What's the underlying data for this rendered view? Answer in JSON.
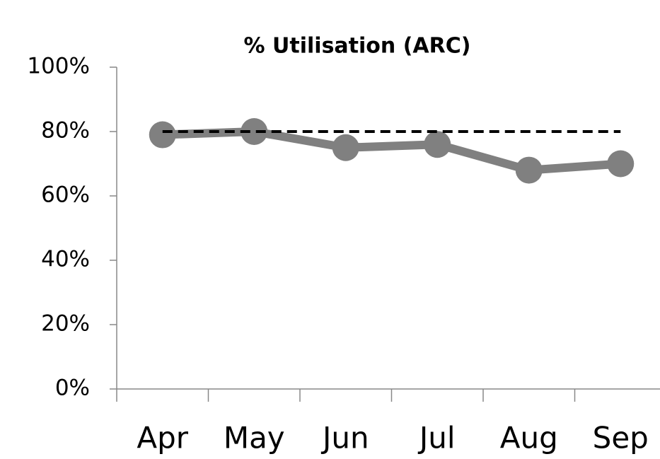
{
  "chart_data": {
    "type": "line",
    "title": "% Utilisation (ARC)",
    "categories": [
      "Apr",
      "May",
      "Jun",
      "Jul",
      "Aug",
      "Sep"
    ],
    "series": [
      {
        "color": "#808080",
        "values": [
          79,
          80,
          75,
          76,
          68,
          70
        ],
        "markers": true
      },
      {
        "color": "#000000",
        "values": [
          80,
          80,
          80,
          80,
          80,
          80
        ],
        "dashed": true
      }
    ],
    "ylim": [
      0,
      100
    ],
    "yticks": [
      {
        "value": 0,
        "label": "0%"
      },
      {
        "value": 20,
        "label": "20%"
      },
      {
        "value": 40,
        "label": "40%"
      },
      {
        "value": 60,
        "label": "60%"
      },
      {
        "value": 80,
        "label": "80%"
      },
      {
        "value": 100,
        "label": "100%"
      }
    ]
  }
}
